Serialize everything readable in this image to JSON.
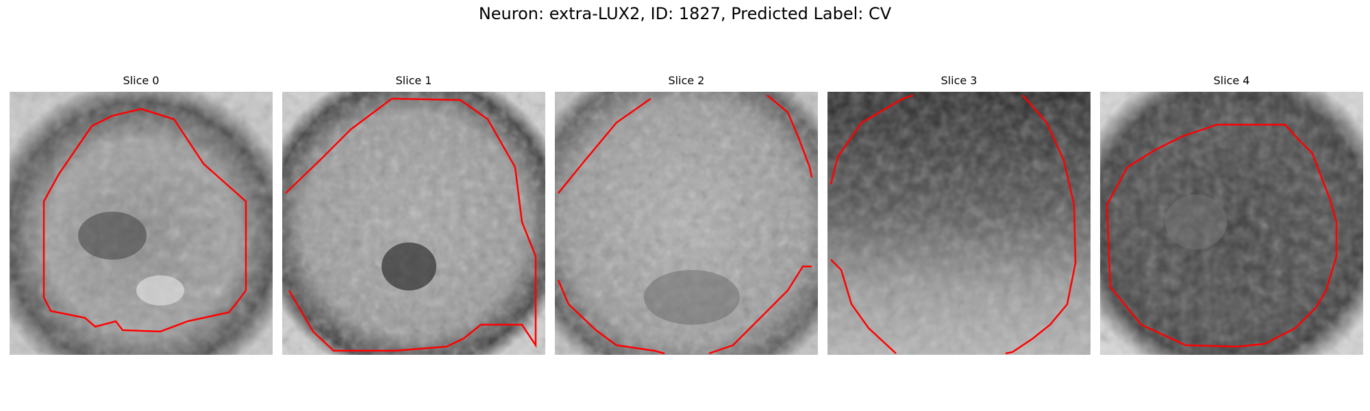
{
  "figure": {
    "title": "Neuron: extra-LUX2, ID: 1827, Predicted Label: CV"
  },
  "panels": [
    {
      "title": "Slice 0"
    },
    {
      "title": "Slice 1"
    },
    {
      "title": "Slice 2"
    },
    {
      "title": "Slice 3"
    },
    {
      "title": "Slice 4"
    }
  ],
  "colors": {
    "contour": "#ff0000",
    "background": "#ffffff"
  }
}
